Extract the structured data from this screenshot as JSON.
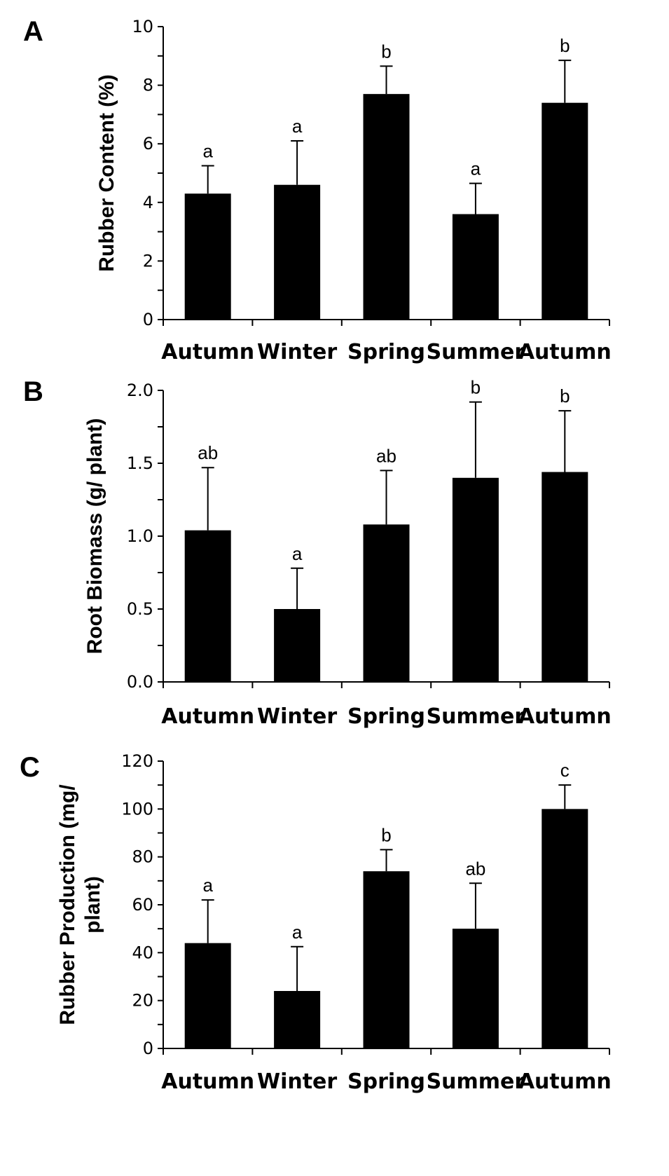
{
  "chart_data": [
    {
      "type": "bar",
      "panel": "A",
      "ylabel": "Rubber Content (%)",
      "categories": [
        "Autumn",
        "Winter",
        "Spring",
        "Summer",
        "Autumn"
      ],
      "values": [
        4.3,
        4.6,
        7.7,
        3.6,
        7.4
      ],
      "errors": [
        0.95,
        1.5,
        0.95,
        1.05,
        1.45
      ],
      "significance": [
        "a",
        "a",
        "b",
        "a",
        "b"
      ],
      "ylim": [
        0,
        10
      ],
      "yticks": [
        "0",
        "2",
        "4",
        "6",
        "8",
        "10"
      ],
      "ymajor_step": 2,
      "yminor_step": 1,
      "bar_color": "#000000",
      "grid": false
    },
    {
      "type": "bar",
      "panel": "B",
      "ylabel": "Root Biomass (g/ plant)",
      "categories": [
        "Autumn",
        "Winter",
        "Spring",
        "Summer",
        "Autumn"
      ],
      "values": [
        1.04,
        0.5,
        1.08,
        1.4,
        1.44
      ],
      "errors": [
        0.43,
        0.28,
        0.37,
        0.52,
        0.42
      ],
      "significance": [
        "ab",
        "a",
        "ab",
        "b",
        "b"
      ],
      "ylim": [
        0,
        2.0
      ],
      "yticks": [
        "0.0",
        "0.5",
        "1.0",
        "1.5",
        "2.0"
      ],
      "ymajor_step": 0.5,
      "yminor_step": 0.25,
      "bar_color": "#000000",
      "grid": false
    },
    {
      "type": "bar",
      "panel": "C",
      "ylabel": "Rubber Production (mg/ plant)",
      "ylabel_lines": [
        "Rubber Production (mg/",
        "plant)"
      ],
      "categories": [
        "Autumn",
        "Winter",
        "Spring",
        "Summer",
        "Autumn"
      ],
      "values": [
        44,
        24,
        74,
        50,
        100
      ],
      "errors": [
        18,
        18.5,
        9,
        19,
        10
      ],
      "significance": [
        "a",
        "a",
        "b",
        "ab",
        "c"
      ],
      "ylim": [
        0,
        120
      ],
      "yticks": [
        "0",
        "20",
        "40",
        "60",
        "80",
        "100",
        "120"
      ],
      "ymajor_step": 20,
      "yminor_step": 10,
      "bar_color": "#000000",
      "grid": false
    }
  ]
}
